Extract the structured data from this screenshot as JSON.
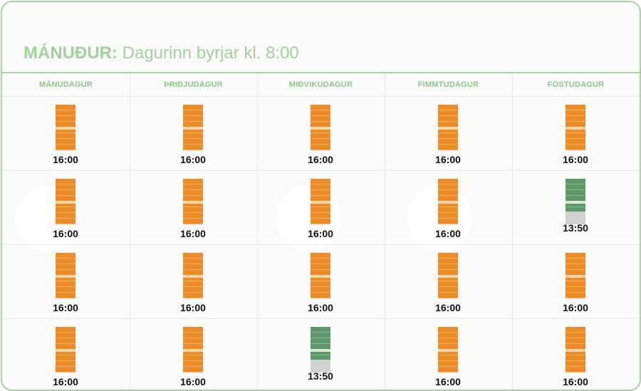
{
  "header": {
    "title_bold": "MÁNUÐUR:",
    "title_rest": " Dagurinn byrjar kl. 8:00"
  },
  "colors": {
    "border": "#a8d2a4",
    "header_text": "#a3d19c",
    "bar_full": "#f08a24",
    "bar_partial": "#5b9a68",
    "bar_empty": "#d2d2d2"
  },
  "days": [
    "MÁNUDAGUR",
    "ÞRIÐJUDAGUR",
    "MIÐVIKUDAGUR",
    "FIMMTUDAGUR",
    "FÖSTUDAGUR"
  ],
  "weeks": [
    [
      {
        "time": "16:00",
        "status": "full",
        "fill": 1.0
      },
      {
        "time": "16:00",
        "status": "full",
        "fill": 1.0
      },
      {
        "time": "16:00",
        "status": "full",
        "fill": 1.0
      },
      {
        "time": "16:00",
        "status": "full",
        "fill": 1.0
      },
      {
        "time": "16:00",
        "status": "full",
        "fill": 1.0
      }
    ],
    [
      {
        "time": "16:00",
        "status": "full",
        "fill": 1.0
      },
      {
        "time": "16:00",
        "status": "full",
        "fill": 1.0
      },
      {
        "time": "16:00",
        "status": "full",
        "fill": 1.0
      },
      {
        "time": "16:00",
        "status": "full",
        "fill": 1.0
      },
      {
        "time": "13:50",
        "status": "partial",
        "fill": 0.72
      }
    ],
    [
      {
        "time": "16:00",
        "status": "full",
        "fill": 1.0
      },
      {
        "time": "16:00",
        "status": "full",
        "fill": 1.0
      },
      {
        "time": "16:00",
        "status": "full",
        "fill": 1.0
      },
      {
        "time": "16:00",
        "status": "full",
        "fill": 1.0
      },
      {
        "time": "16:00",
        "status": "full",
        "fill": 1.0
      }
    ],
    [
      {
        "time": "16:00",
        "status": "full",
        "fill": 1.0
      },
      {
        "time": "16:00",
        "status": "full",
        "fill": 1.0
      },
      {
        "time": "13:50",
        "status": "partial",
        "fill": 0.72
      },
      {
        "time": "16:00",
        "status": "full",
        "fill": 1.0
      },
      {
        "time": "16:00",
        "status": "full",
        "fill": 1.0
      }
    ]
  ]
}
